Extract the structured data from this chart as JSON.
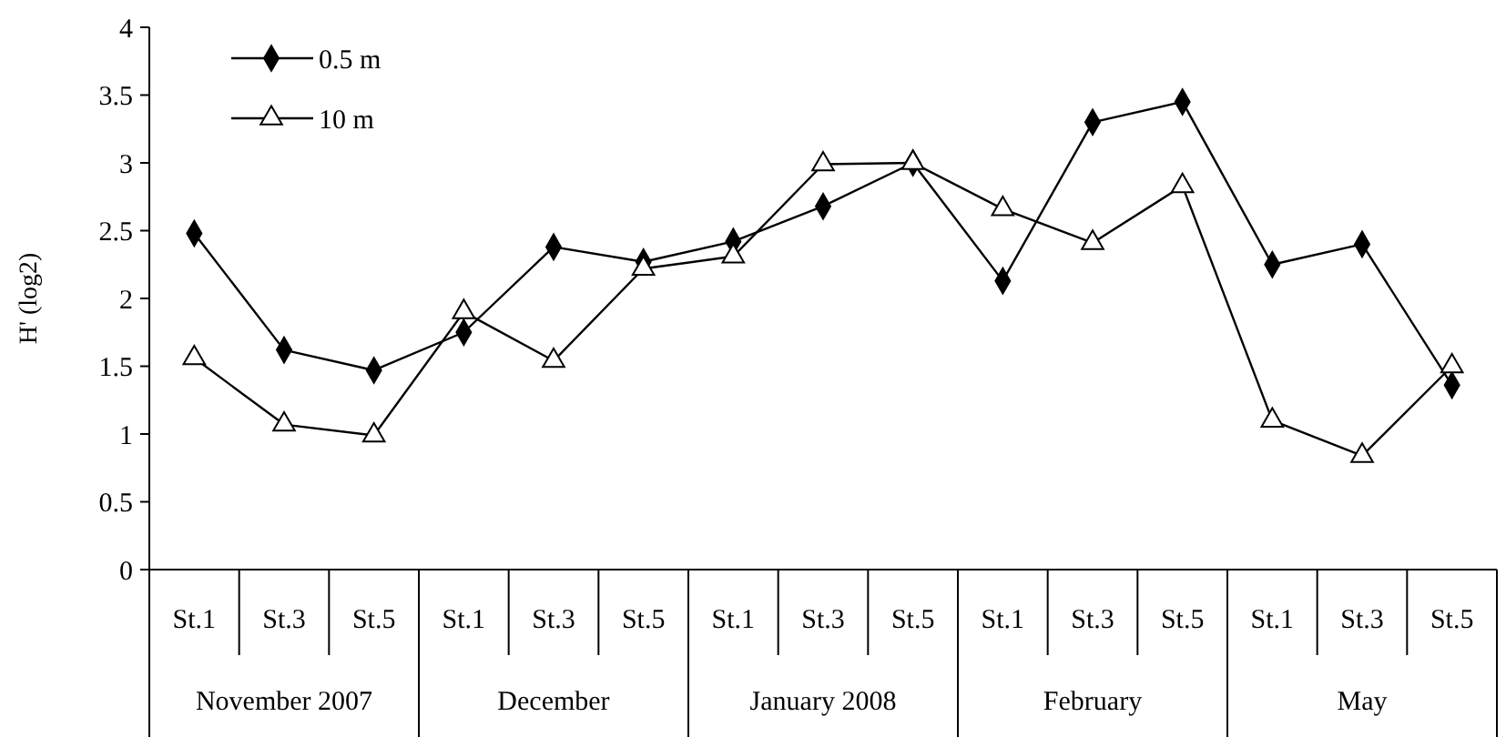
{
  "chart_data": {
    "type": "line",
    "ylabel": "H' (log2)",
    "categories": [
      "St.1",
      "St.3",
      "St.5",
      "St.1",
      "St.3",
      "St.5",
      "St.1",
      "St.3",
      "St.5",
      "St.1",
      "St.3",
      "St.5",
      "St.1",
      "St.3",
      "St.5"
    ],
    "annotations": [
      "November 2007",
      "December",
      "January 2008",
      "February",
      "May"
    ],
    "series": [
      {
        "name": "0.5 m",
        "color": "#000000",
        "marker": "diamond",
        "values": [
          2.48,
          1.62,
          1.47,
          1.75,
          2.38,
          2.27,
          2.42,
          2.68,
          3.0,
          2.13,
          3.3,
          3.45,
          2.25,
          2.4,
          1.36
        ]
      },
      {
        "name": "10 m",
        "color": "#000000",
        "marker": "triangle",
        "values": [
          1.56,
          1.07,
          0.99,
          1.9,
          1.54,
          2.22,
          2.31,
          2.99,
          3.0,
          2.66,
          2.41,
          2.83,
          1.1,
          0.84,
          1.5
        ]
      }
    ],
    "ylim": [
      0,
      4
    ],
    "yticks": [
      0,
      0.5,
      1,
      1.5,
      2,
      2.5,
      3,
      3.5,
      4
    ],
    "grid": false,
    "legend": "top left",
    "line_style": "solid"
  }
}
